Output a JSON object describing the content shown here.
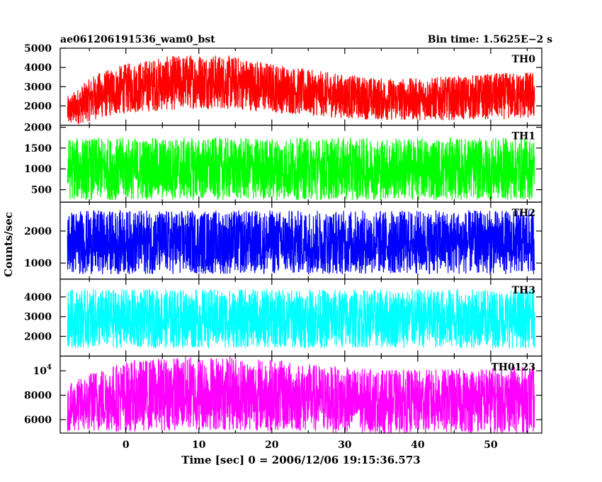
{
  "header": {
    "title": "ae061206191536_wam0_bst",
    "bin_time": "Bin time: 1.5625E−2 s"
  },
  "chart_data": {
    "type": "line",
    "xlabel": "Time [sec] 0 = 2006/12/06 19:15:36.573",
    "ylabel": "Counts/sec",
    "xlim": [
      -9,
      57
    ],
    "xticks": [
      "0",
      "10",
      "20",
      "30",
      "40",
      "50"
    ],
    "x_range_data": [
      -8,
      56
    ],
    "panels": [
      {
        "name": "TH0",
        "color": "#ff0000",
        "ylim": [
          1000,
          5000
        ],
        "yticks": [
          "2000",
          "3000",
          "4000",
          "5000"
        ],
        "envelope": {
          "x": [
            -8,
            -4,
            0,
            5,
            10,
            15,
            20,
            25,
            30,
            35,
            40,
            45,
            50,
            56
          ],
          "center": [
            1700,
            2500,
            2900,
            3150,
            3300,
            3200,
            2950,
            2700,
            2500,
            2350,
            2350,
            2400,
            2500,
            2550
          ],
          "half_range": [
            800,
            1200,
            1300,
            1400,
            1450,
            1400,
            1300,
            1200,
            1150,
            1100,
            1100,
            1150,
            1200,
            1250
          ]
        }
      },
      {
        "name": "TH1",
        "color": "#00ff00",
        "ylim": [
          200,
          2050
        ],
        "yticks": [
          "500",
          "1000",
          "1500",
          "2000"
        ],
        "envelope": {
          "x": [
            -8,
            56
          ],
          "center": [
            1000,
            1000
          ],
          "half_range": [
            750,
            750
          ]
        }
      },
      {
        "name": "TH2",
        "color": "#0000ff",
        "ylim": [
          500,
          2900
        ],
        "yticks": [
          "1000",
          "2000"
        ],
        "envelope": {
          "x": [
            -8,
            56
          ],
          "center": [
            1650,
            1650
          ],
          "half_range": [
            1000,
            1000
          ]
        }
      },
      {
        "name": "TH3",
        "color": "#00ffff",
        "ylim": [
          1000,
          4900
        ],
        "yticks": [
          "2000",
          "3000",
          "4000"
        ],
        "envelope": {
          "x": [
            -8,
            56
          ],
          "center": [
            2900,
            2900
          ],
          "half_range": [
            1500,
            1500
          ]
        }
      },
      {
        "name": "TH0123",
        "color": "#ff00ff",
        "ylim": [
          4900,
          11200
        ],
        "yticks": [
          "6000",
          "8000",
          "10^4"
        ],
        "envelope": {
          "x": [
            -8,
            -4,
            0,
            5,
            10,
            15,
            20,
            25,
            30,
            35,
            40,
            45,
            50,
            56
          ],
          "center": [
            6900,
            7600,
            7900,
            8100,
            8200,
            8150,
            8000,
            7800,
            7600,
            7500,
            7500,
            7550,
            7600,
            7650
          ],
          "half_range": [
            1900,
            2600,
            2900,
            3000,
            3100,
            3050,
            2950,
            2800,
            2700,
            2600,
            2600,
            2650,
            2700,
            2750
          ]
        }
      }
    ]
  }
}
